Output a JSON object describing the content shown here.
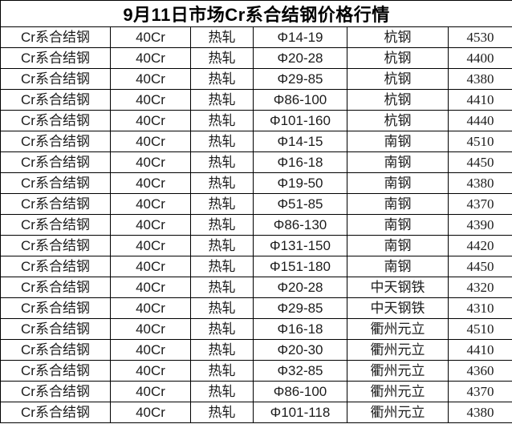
{
  "title": "9月11日市场Cr系合结钢价格行情",
  "rows": [
    {
      "material": "Cr系合结钢",
      "grade": "40Cr",
      "process": "热轧",
      "spec": "Φ14-19",
      "mill": "杭钢",
      "price": "4530"
    },
    {
      "material": "Cr系合结钢",
      "grade": "40Cr",
      "process": "热轧",
      "spec": "Φ20-28",
      "mill": "杭钢",
      "price": "4400"
    },
    {
      "material": "Cr系合结钢",
      "grade": "40Cr",
      "process": "热轧",
      "spec": "Φ29-85",
      "mill": "杭钢",
      "price": "4380"
    },
    {
      "material": "Cr系合结钢",
      "grade": "40Cr",
      "process": "热轧",
      "spec": "Φ86-100",
      "mill": "杭钢",
      "price": "4410"
    },
    {
      "material": "Cr系合结钢",
      "grade": "40Cr",
      "process": "热轧",
      "spec": "Φ101-160",
      "mill": "杭钢",
      "price": "4440"
    },
    {
      "material": "Cr系合结钢",
      "grade": "40Cr",
      "process": "热轧",
      "spec": "Φ14-15",
      "mill": "南钢",
      "price": "4510"
    },
    {
      "material": "Cr系合结钢",
      "grade": "40Cr",
      "process": "热轧",
      "spec": "Φ16-18",
      "mill": "南钢",
      "price": "4450"
    },
    {
      "material": "Cr系合结钢",
      "grade": "40Cr",
      "process": "热轧",
      "spec": "Φ19-50",
      "mill": "南钢",
      "price": "4380"
    },
    {
      "material": "Cr系合结钢",
      "grade": "40Cr",
      "process": "热轧",
      "spec": "Φ51-85",
      "mill": "南钢",
      "price": "4370"
    },
    {
      "material": "Cr系合结钢",
      "grade": "40Cr",
      "process": "热轧",
      "spec": "Φ86-130",
      "mill": "南钢",
      "price": "4390"
    },
    {
      "material": "Cr系合结钢",
      "grade": "40Cr",
      "process": "热轧",
      "spec": "Φ131-150",
      "mill": "南钢",
      "price": "4420"
    },
    {
      "material": "Cr系合结钢",
      "grade": "40Cr",
      "process": "热轧",
      "spec": "Φ151-180",
      "mill": "南钢",
      "price": "4450"
    },
    {
      "material": "Cr系合结钢",
      "grade": "40Cr",
      "process": "热轧",
      "spec": "Φ20-28",
      "mill": "中天钢铁",
      "price": "4320"
    },
    {
      "material": "Cr系合结钢",
      "grade": "40Cr",
      "process": "热轧",
      "spec": "Φ29-85",
      "mill": "中天钢铁",
      "price": "4310"
    },
    {
      "material": "Cr系合结钢",
      "grade": "40Cr",
      "process": "热轧",
      "spec": "Φ16-18",
      "mill": "衢州元立",
      "price": "4510"
    },
    {
      "material": "Cr系合结钢",
      "grade": "40Cr",
      "process": "热轧",
      "spec": "Φ20-30",
      "mill": "衢州元立",
      "price": "4410"
    },
    {
      "material": "Cr系合结钢",
      "grade": "40Cr",
      "process": "热轧",
      "spec": "Φ32-85",
      "mill": "衢州元立",
      "price": "4360"
    },
    {
      "material": "Cr系合结钢",
      "grade": "40Cr",
      "process": "热轧",
      "spec": "Φ86-100",
      "mill": "衢州元立",
      "price": "4370"
    },
    {
      "material": "Cr系合结钢",
      "grade": "40Cr",
      "process": "热轧",
      "spec": "Φ101-118",
      "mill": "衢州元立",
      "price": "4380"
    }
  ]
}
